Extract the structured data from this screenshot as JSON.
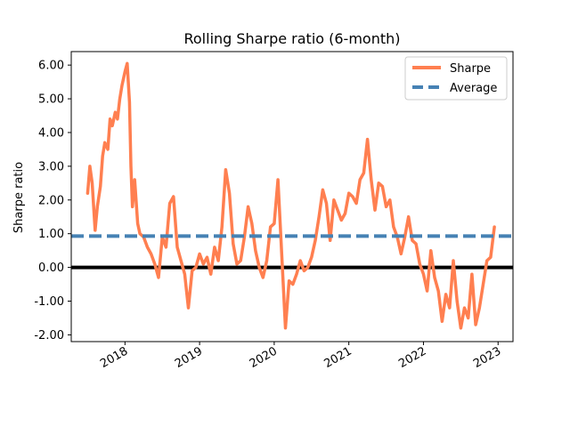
{
  "chart_data": {
    "type": "line",
    "title": "Rolling Sharpe ratio (6-month)",
    "xlabel": "",
    "ylabel": "Sharpe ratio",
    "xlim": [
      2017.28,
      2023.2
    ],
    "ylim": [
      -2.2,
      6.4
    ],
    "x_ticks": [
      2018,
      2019,
      2020,
      2021,
      2022,
      2023
    ],
    "x_tick_labels": [
      "2018",
      "2019",
      "2020",
      "2021",
      "2022",
      "2023"
    ],
    "y_ticks": [
      -2,
      -1,
      0,
      1,
      2,
      3,
      4,
      5,
      6
    ],
    "y_tick_labels": [
      "-2.00",
      "-1.00",
      "0.00",
      "1.00",
      "2.00",
      "3.00",
      "4.00",
      "5.00",
      "6.00"
    ],
    "zero_line": 0,
    "legend_position": "top-right",
    "series": [
      {
        "name": "Sharpe",
        "style": "solid",
        "color": "#ff7f50",
        "x": [
          2017.5,
          2017.53,
          2017.56,
          2017.6,
          2017.63,
          2017.67,
          2017.7,
          2017.73,
          2017.77,
          2017.8,
          2017.83,
          2017.87,
          2017.9,
          2017.93,
          2017.96,
          2018.0,
          2018.03,
          2018.06,
          2018.08,
          2018.1,
          2018.13,
          2018.17,
          2018.2,
          2018.25,
          2018.3,
          2018.35,
          2018.4,
          2018.45,
          2018.5,
          2018.55,
          2018.6,
          2018.65,
          2018.7,
          2018.75,
          2018.8,
          2018.85,
          2018.9,
          2018.95,
          2019.0,
          2019.05,
          2019.1,
          2019.15,
          2019.2,
          2019.25,
          2019.3,
          2019.35,
          2019.4,
          2019.45,
          2019.5,
          2019.55,
          2019.6,
          2019.65,
          2019.7,
          2019.75,
          2019.8,
          2019.85,
          2019.9,
          2019.95,
          2020.0,
          2020.05,
          2020.1,
          2020.15,
          2020.2,
          2020.25,
          2020.3,
          2020.35,
          2020.4,
          2020.45,
          2020.5,
          2020.55,
          2020.6,
          2020.65,
          2020.7,
          2020.75,
          2020.8,
          2020.85,
          2020.9,
          2020.95,
          2021.0,
          2021.05,
          2021.1,
          2021.15,
          2021.2,
          2021.25,
          2021.3,
          2021.35,
          2021.4,
          2021.45,
          2021.5,
          2021.55,
          2021.6,
          2021.65,
          2021.7,
          2021.75,
          2021.8,
          2021.85,
          2021.9,
          2021.95,
          2022.0,
          2022.05,
          2022.1,
          2022.15,
          2022.2,
          2022.25,
          2022.3,
          2022.35,
          2022.4,
          2022.45,
          2022.5,
          2022.55,
          2022.6,
          2022.65,
          2022.7,
          2022.75,
          2022.8,
          2022.85,
          2022.9,
          2022.95
        ],
        "y": [
          2.2,
          3.0,
          2.5,
          1.1,
          1.8,
          2.4,
          3.3,
          3.7,
          3.5,
          4.4,
          4.2,
          4.6,
          4.4,
          5.0,
          5.4,
          5.8,
          6.05,
          4.9,
          3.0,
          1.8,
          2.6,
          1.3,
          1.0,
          0.9,
          0.6,
          0.4,
          0.1,
          -0.3,
          0.9,
          0.6,
          1.9,
          2.1,
          0.6,
          0.2,
          -0.2,
          -1.2,
          -0.1,
          0.0,
          0.4,
          0.1,
          0.3,
          -0.2,
          0.6,
          0.2,
          1.2,
          2.9,
          2.2,
          0.7,
          0.1,
          0.2,
          0.9,
          1.8,
          1.3,
          0.5,
          0.0,
          -0.3,
          0.2,
          1.2,
          1.3,
          2.6,
          0.4,
          -1.8,
          -0.4,
          -0.5,
          -0.2,
          0.2,
          -0.1,
          0.0,
          0.3,
          0.8,
          1.5,
          2.3,
          1.9,
          0.8,
          2.0,
          1.7,
          1.4,
          1.6,
          2.2,
          2.1,
          1.9,
          2.6,
          2.8,
          3.8,
          2.6,
          1.7,
          2.5,
          2.4,
          1.8,
          2.0,
          1.2,
          0.9,
          0.4,
          0.9,
          1.5,
          0.8,
          0.7,
          0.1,
          -0.2,
          -0.7,
          0.5,
          -0.3,
          -0.7,
          -1.6,
          -0.8,
          -1.2,
          0.2,
          -1.0,
          -1.8,
          -1.2,
          -1.5,
          -0.2,
          -1.7,
          -1.2,
          -0.5,
          0.2,
          0.3,
          1.2
        ]
      },
      {
        "name": "Average",
        "style": "dashed",
        "color": "#4682b4",
        "value": 0.93
      }
    ]
  }
}
